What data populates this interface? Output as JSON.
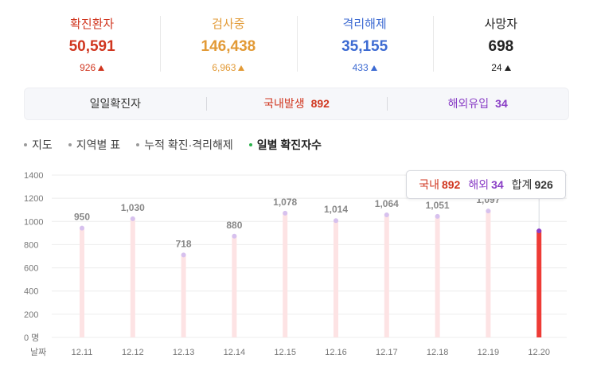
{
  "stats": [
    {
      "label": "확진환자",
      "value": "50,591",
      "change": "926",
      "color": "#d0361f"
    },
    {
      "label": "검사중",
      "value": "146,438",
      "change": "6,963",
      "color": "#e29a36"
    },
    {
      "label": "격리해제",
      "value": "35,155",
      "change": "433",
      "color": "#3c6ad2"
    },
    {
      "label": "사망자",
      "value": "698",
      "change": "24",
      "color": "#222222"
    }
  ],
  "breakdown": {
    "daily_label": "일일확진자",
    "domestic_label": "국내발생",
    "domestic_value": "892",
    "overseas_label": "해외유입",
    "overseas_value": "34",
    "domestic_color": "#d0361f",
    "overseas_color": "#8a3fc6"
  },
  "tabs": [
    {
      "label": "지도",
      "active": false
    },
    {
      "label": "지역별 표",
      "active": false
    },
    {
      "label": "누적 확진·격리해제",
      "active": false
    },
    {
      "label": "일별 확진자수",
      "active": true
    }
  ],
  "tooltip": {
    "domestic_label": "국내",
    "domestic_value": "892",
    "overseas_label": "해외",
    "overseas_value": "34",
    "total_label": "합계",
    "total_value": "926"
  },
  "chart_data": {
    "type": "bar",
    "categories": [
      "12.11",
      "12.12",
      "12.13",
      "12.14",
      "12.15",
      "12.16",
      "12.17",
      "12.18",
      "12.19",
      "12.20"
    ],
    "values": [
      950,
      1030,
      718,
      880,
      1078,
      1014,
      1064,
      1051,
      1097,
      926
    ],
    "data_labels": [
      "950",
      "1,030",
      "718",
      "880",
      "1,078",
      "1,014",
      "1,064",
      "1,051",
      "1,097",
      ""
    ],
    "highlight_domestic": 892,
    "highlight_overseas": 34,
    "highlight_index": 9,
    "yticks": [
      0,
      200,
      400,
      600,
      800,
      1000,
      1200,
      1400
    ],
    "ytick_labels": [
      "0 명",
      "200",
      "400",
      "600",
      "800",
      "1000",
      "1200",
      "1400"
    ],
    "ylim": [
      0,
      1400
    ],
    "xlabel": "날짜",
    "ylabel": "",
    "grid": true,
    "bar_color": "#fde3e4",
    "bar_cap_color": "#d7c1ee",
    "highlight_color": "#ee3b36",
    "highlight_cap_color": "#8a3fc6"
  }
}
